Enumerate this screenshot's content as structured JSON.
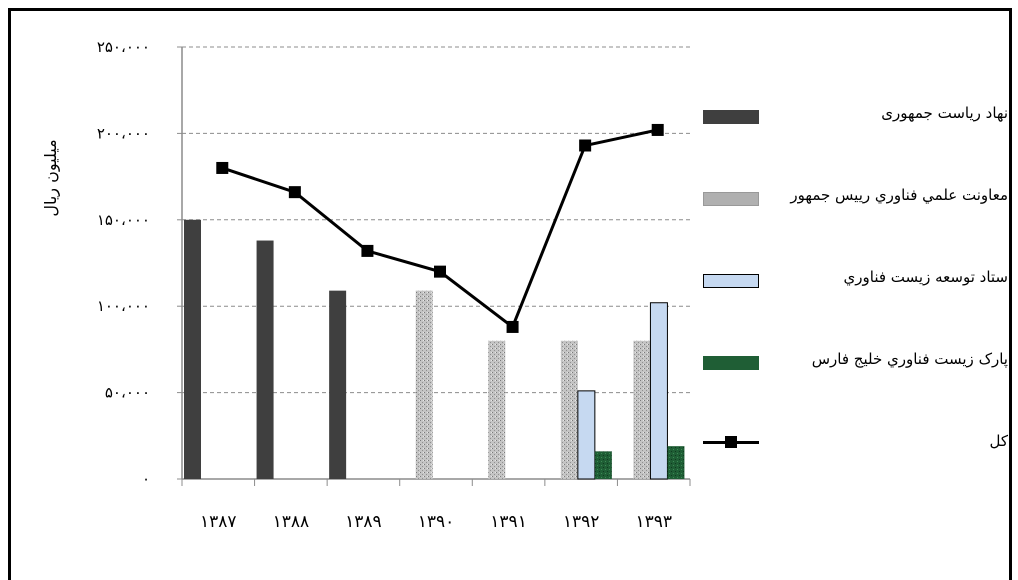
{
  "chart_data": {
    "type": "bar",
    "title": "",
    "xlabel": "",
    "ylabel": "میلیون ریال",
    "categories": [
      "۱۳۸۷",
      "۱۳۸۸",
      "۱۳۸۹",
      "۱۳۹۰",
      "۱۳۹۱",
      "۱۳۹۲",
      "۱۳۹۳"
    ],
    "ylim": [
      0,
      250000
    ],
    "yticks": [
      0,
      50000,
      100000,
      150000,
      200000,
      250000
    ],
    "ytick_labels": [
      "۰",
      "۵۰،۰۰۰",
      "۱۰۰،۰۰۰",
      "۱۵۰،۰۰۰",
      "۲۰۰،۰۰۰",
      "۲۵۰،۰۰۰"
    ],
    "grid": true,
    "legend_position": "right",
    "series": [
      {
        "name": "نهاد ریاست جمهوری",
        "type": "bar",
        "color": "#3f3f3f",
        "values": [
          150000,
          138000,
          109000,
          null,
          null,
          null,
          null
        ]
      },
      {
        "name": "معاونت علمي فناوري رييس جمهور",
        "type": "bar",
        "color": "#b0b0b0",
        "values": [
          null,
          null,
          null,
          109000,
          80000,
          80000,
          80000
        ]
      },
      {
        "name": "ستاد توسعه زیست فناوري",
        "type": "bar",
        "color": "#c6d9f1",
        "values": [
          null,
          null,
          null,
          null,
          null,
          51000,
          102000
        ]
      },
      {
        "name": "پارک زیست فناوري خلیج فارس",
        "type": "bar",
        "color": "#1f5e35",
        "values": [
          null,
          null,
          null,
          null,
          null,
          16000,
          19000
        ]
      },
      {
        "name": "کل",
        "type": "line",
        "color": "#000000",
        "values": [
          180000,
          166000,
          132000,
          120000,
          88000,
          193000,
          202000
        ]
      }
    ]
  }
}
